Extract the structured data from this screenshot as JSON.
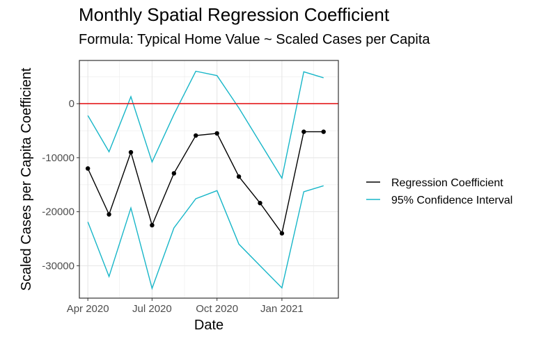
{
  "chart_data": {
    "type": "line",
    "title": "Monthly Spatial Regression Coefficient",
    "subtitle": "Formula: Typical Home Value ~ Scaled Cases per Capita",
    "xlabel": "Date",
    "ylabel": "Scaled Cases per Capita Coefficient",
    "x": [
      "2020-04-01",
      "2020-05-01",
      "2020-06-01",
      "2020-07-01",
      "2020-08-01",
      "2020-09-01",
      "2020-10-01",
      "2020-11-01",
      "2020-12-01",
      "2021-01-01",
      "2021-02-01",
      "2021-03-01"
    ],
    "x_ticks": [
      "Apr 2020",
      "Jul 2020",
      "Oct 2020",
      "Jan 2021"
    ],
    "y_ticks": [
      0,
      -10000,
      -20000,
      -30000
    ],
    "ylim": [
      -36000,
      8000
    ],
    "reference_line": {
      "y": 0,
      "color": "#e41a1c"
    },
    "series": [
      {
        "name": "Regression Coefficient",
        "color": "#000000",
        "markers": true,
        "values": [
          -12000,
          -20500,
          -9000,
          -22500,
          -12900,
          -5900,
          -5500,
          -13500,
          -18400,
          -24000,
          -5200,
          -5200
        ]
      },
      {
        "name": "95% Confidence Interval",
        "color": "#17b6c8",
        "markers": false,
        "values": [
          -2200,
          -8900,
          1300,
          -10800,
          -2000,
          6000,
          5200,
          -800,
          -7200,
          -13800,
          5900,
          4800
        ]
      },
      {
        "name": "",
        "color": "#17b6c8",
        "markers": false,
        "values": [
          -21900,
          -32000,
          -19300,
          -34200,
          -23000,
          -17600,
          -16100,
          -26000,
          -30000,
          -34100,
          -16300,
          -15200
        ]
      }
    ],
    "legend": {
      "position": "right",
      "entries": [
        {
          "label": "Regression Coefficient",
          "color": "#000000"
        },
        {
          "label": "95% Confidence Interval",
          "color": "#17b6c8"
        }
      ]
    },
    "grid": true
  }
}
